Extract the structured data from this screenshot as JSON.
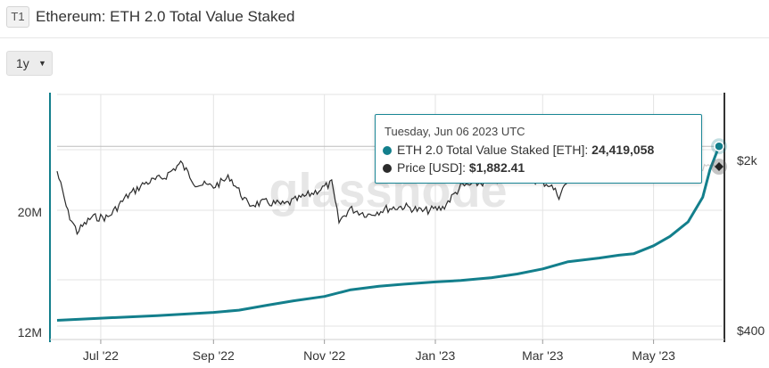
{
  "header": {
    "badge": "T1",
    "title": "Ethereum: ETH 2.0 Total Value Staked",
    "close_label": ""
  },
  "range_selector": {
    "label": "1y"
  },
  "watermark": "glassnode",
  "tooltip": {
    "date": "Tuesday, Jun 06 2023 UTC",
    "rows": [
      {
        "series": "ETH 2.0 Total Value Staked [ETH]",
        "value": "24,419,058",
        "color": "#137f8c"
      },
      {
        "series": "Price [USD]",
        "value": "$1,882.41",
        "color": "#2b2b2b"
      }
    ]
  },
  "colors": {
    "staked": "#137f8c",
    "price": "#2b2b2b",
    "price_faded": "#cfcfcf",
    "grid": "#e3e3e3"
  },
  "chart_data": {
    "type": "line",
    "title": "Ethereum: ETH 2.0 Total Value Staked",
    "x_tick_labels": [
      "Jul '22",
      "Sep '22",
      "Nov '22",
      "Jan '23",
      "Mar '23",
      "May '23"
    ],
    "left_axis": {
      "labels": [
        "20M",
        "12M"
      ],
      "range": [
        12000000,
        27000000
      ]
    },
    "right_axis": {
      "labels": [
        "$2k",
        "$400"
      ],
      "scale": "log",
      "range": [
        400,
        2500
      ]
    },
    "grid": true,
    "series": [
      {
        "name": "ETH 2.0 Total Value Staked [ETH]",
        "axis": "left",
        "x": [
          "2022-06-07",
          "2022-07-01",
          "2022-08-01",
          "2022-09-01",
          "2022-09-15",
          "2022-10-01",
          "2022-10-15",
          "2022-11-01",
          "2022-11-15",
          "2022-12-01",
          "2022-12-15",
          "2023-01-01",
          "2023-01-15",
          "2023-02-01",
          "2023-02-15",
          "2023-03-01",
          "2023-03-15",
          "2023-04-01",
          "2023-04-12",
          "2023-04-20",
          "2023-05-01",
          "2023-05-10",
          "2023-05-20",
          "2023-05-28",
          "2023-06-01",
          "2023-06-06"
        ],
        "values": [
          12400000,
          12550000,
          12720000,
          12950000,
          13100000,
          13450000,
          13750000,
          14050000,
          14500000,
          14750000,
          14900000,
          15050000,
          15150000,
          15350000,
          15600000,
          15950000,
          16450000,
          16700000,
          16900000,
          17000000,
          17550000,
          18200000,
          19200000,
          20900000,
          22800000,
          24419058
        ]
      },
      {
        "name": "Price [USD]",
        "axis": "right",
        "x": [
          "2022-06-07",
          "2022-06-13",
          "2022-06-18",
          "2022-06-26",
          "2022-07-05",
          "2022-07-15",
          "2022-07-25",
          "2022-08-05",
          "2022-08-14",
          "2022-08-22",
          "2022-09-01",
          "2022-09-10",
          "2022-09-20",
          "2022-09-30",
          "2022-10-10",
          "2022-10-25",
          "2022-11-05",
          "2022-11-09",
          "2022-11-15",
          "2022-11-25",
          "2022-12-05",
          "2022-12-15",
          "2022-12-25",
          "2023-01-05",
          "2023-01-15",
          "2023-01-25",
          "2023-02-05",
          "2023-02-15",
          "2023-02-25",
          "2023-03-05",
          "2023-03-10",
          "2023-03-15",
          "2023-03-25",
          "2023-04-05",
          "2023-04-15",
          "2023-04-25",
          "2023-05-05",
          "2023-05-15",
          "2023-05-25",
          "2023-06-01",
          "2023-06-06"
        ],
        "values": [
          1800,
          1200,
          1000,
          1150,
          1150,
          1400,
          1600,
          1700,
          1950,
          1600,
          1550,
          1700,
          1300,
          1330,
          1300,
          1450,
          1600,
          1100,
          1250,
          1180,
          1250,
          1280,
          1220,
          1260,
          1550,
          1600,
          1650,
          1700,
          1650,
          1580,
          1420,
          1650,
          1780,
          1880,
          2100,
          1900,
          1950,
          1800,
          1820,
          1870,
          1882.41
        ]
      }
    ]
  }
}
